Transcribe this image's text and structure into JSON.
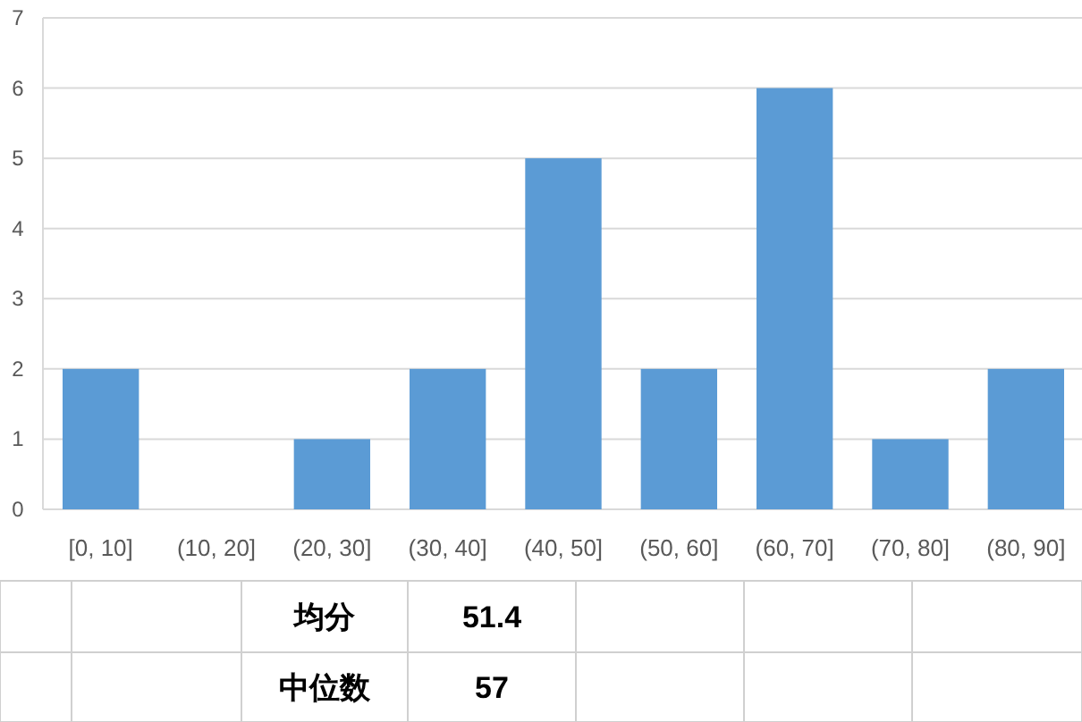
{
  "chart_data": {
    "type": "bar",
    "categories": [
      "[0, 10]",
      "(10, 20]",
      "(20, 30]",
      "(30, 40]",
      "(40, 50]",
      "(50, 60]",
      "(60, 70]",
      "(70, 80]",
      "(80, 90]"
    ],
    "values": [
      2,
      0,
      1,
      2,
      5,
      2,
      6,
      1,
      2
    ],
    "color": "#5b9bd5",
    "ylim": [
      0,
      7
    ],
    "yticks": [
      0,
      1,
      2,
      3,
      4,
      5,
      6,
      7
    ],
    "grid": "y",
    "annotations": [
      "均分",
      "51.4",
      "中位数",
      "57"
    ]
  }
}
